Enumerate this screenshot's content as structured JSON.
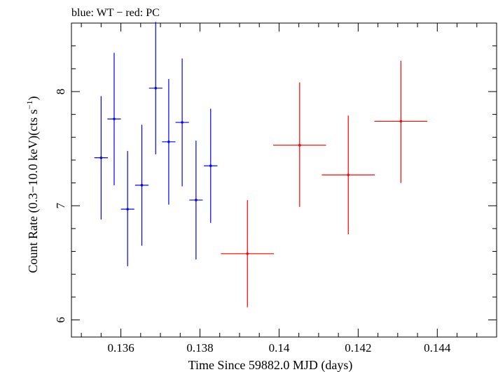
{
  "chart_data": {
    "type": "scatter",
    "title": "blue: WT − red: PC",
    "xlabel": "Time Since 59882.0 MJD (days)",
    "ylabel_main": "Count Rate (0.3−10.0 keV)(cts s",
    "ylabel_sup": "−1",
    "ylabel_close": ")",
    "xlim": [
      0.13475,
      0.1455
    ],
    "ylim": [
      5.85,
      8.6
    ],
    "x_ticks": [
      0.136,
      0.138,
      0.14,
      0.142,
      0.144
    ],
    "x_tick_labels": [
      "0.136",
      "0.138",
      "0.14",
      "0.142",
      "0.144"
    ],
    "y_ticks": [
      6,
      7,
      8
    ],
    "y_tick_labels": [
      "6",
      "7",
      "8"
    ],
    "x_minor_step": 0.0005,
    "y_minor_step": 0.2,
    "series": [
      {
        "color": "#0000ff",
        "points": [
          {
            "x": 0.1355,
            "xerr": 0.00017,
            "y": 7.42,
            "yerr_lo": 0.54,
            "yerr_hi": 0.54
          },
          {
            "x": 0.13583,
            "xerr": 0.00017,
            "y": 7.76,
            "yerr_lo": 0.58,
            "yerr_hi": 0.58
          },
          {
            "x": 0.13617,
            "xerr": 0.00017,
            "y": 6.97,
            "yerr_lo": 0.5,
            "yerr_hi": 0.51
          },
          {
            "x": 0.13653,
            "xerr": 0.00017,
            "y": 7.18,
            "yerr_lo": 0.53,
            "yerr_hi": 0.53
          },
          {
            "x": 0.13688,
            "xerr": 0.00017,
            "y": 8.03,
            "yerr_lo": 0.58,
            "yerr_hi": 0.58
          },
          {
            "x": 0.13721,
            "xerr": 0.00017,
            "y": 7.56,
            "yerr_lo": 0.55,
            "yerr_hi": 0.55
          },
          {
            "x": 0.13755,
            "xerr": 0.00017,
            "y": 7.73,
            "yerr_lo": 0.56,
            "yerr_hi": 0.56
          },
          {
            "x": 0.1379,
            "xerr": 0.00017,
            "y": 7.05,
            "yerr_lo": 0.52,
            "yerr_hi": 0.52
          },
          {
            "x": 0.13827,
            "xerr": 0.00017,
            "y": 7.35,
            "yerr_lo": 0.5,
            "yerr_hi": 0.5
          }
        ]
      },
      {
        "color": "#ff0000",
        "points": [
          {
            "x": 0.1392,
            "xerr": 0.00067,
            "y": 6.58,
            "yerr_lo": 0.47,
            "yerr_hi": 0.47
          },
          {
            "x": 0.14052,
            "xerr": 0.00067,
            "y": 7.53,
            "yerr_lo": 0.54,
            "yerr_hi": 0.55
          },
          {
            "x": 0.14175,
            "xerr": 0.00067,
            "y": 7.27,
            "yerr_lo": 0.52,
            "yerr_hi": 0.52
          },
          {
            "x": 0.14308,
            "xerr": 0.00067,
            "y": 7.74,
            "yerr_lo": 0.54,
            "yerr_hi": 0.53
          }
        ]
      }
    ]
  }
}
